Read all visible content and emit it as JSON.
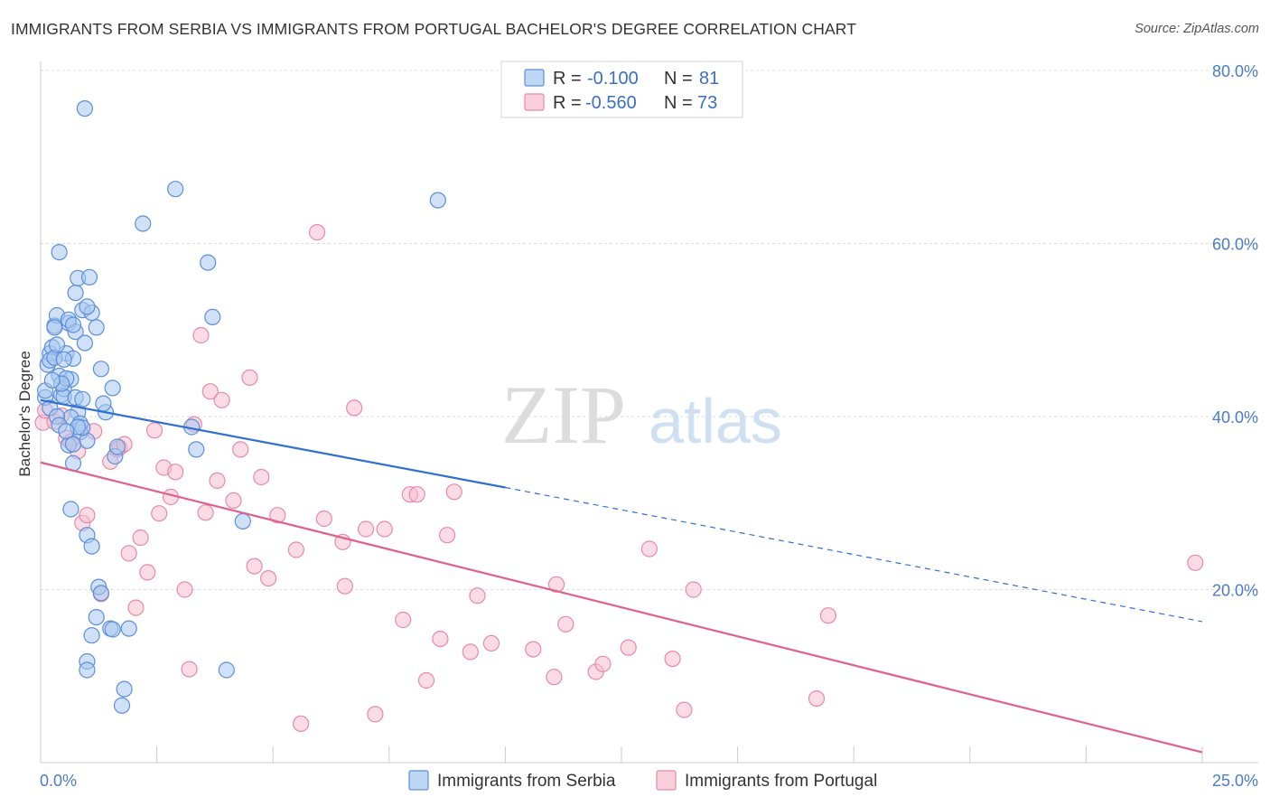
{
  "title": "IMMIGRANTS FROM SERBIA VS IMMIGRANTS FROM PORTUGAL BACHELOR'S DEGREE CORRELATION CHART",
  "source": "Source: ZipAtlas.com",
  "watermark": {
    "zip": "ZIP",
    "atlas": "atlas"
  },
  "legend": {
    "serbia": {
      "r_label": "R =",
      "r_value": "-0.100",
      "n_label": "N =",
      "n_value": "81"
    },
    "portugal": {
      "r_label": "R =",
      "r_value": "-0.560",
      "n_label": "N =",
      "n_value": "73"
    }
  },
  "bottom_legend": {
    "serbia": "Immigrants from Serbia",
    "portugal": "Immigrants from Portugal"
  },
  "colors": {
    "serbia_fill": "#a9c8f0",
    "serbia_stroke": "#5b8fd9",
    "serbia_line": "#2f6fd0",
    "portugal_fill": "#f7bfd0",
    "portugal_stroke": "#e68aa8",
    "portugal_line": "#e0608c",
    "axis_text": "#4a7cc7",
    "grid": "#dddddd"
  },
  "chart_data": {
    "type": "scatter",
    "title": "IMMIGRANTS FROM SERBIA VS IMMIGRANTS FROM PORTUGAL BACHELOR'S DEGREE CORRELATION CHART",
    "xlabel": "",
    "ylabel": "Bachelor's Degree",
    "xlim": [
      0,
      25
    ],
    "ylim": [
      0,
      80
    ],
    "x_tick_labels": [
      "0.0%",
      "25.0%"
    ],
    "y_ticks": [
      20,
      40,
      60,
      80
    ],
    "y_tick_labels": [
      "20.0%",
      "40.0%",
      "60.0%",
      "80.0%"
    ],
    "grid": true,
    "legend_placement": "top-center",
    "series": [
      {
        "name": "Immigrants from Serbia",
        "r": -0.1,
        "n": 81,
        "trend": {
          "x0": 0,
          "y0": 41.9,
          "x1": 10,
          "y1": 31.8,
          "dashed_to_x": 25,
          "dashed_to_y": 16.3
        },
        "points": [
          [
            0.1,
            42.2
          ],
          [
            0.15,
            46.0
          ],
          [
            0.2,
            47.3
          ],
          [
            0.25,
            48.0
          ],
          [
            0.3,
            50.5
          ],
          [
            0.35,
            51.7
          ],
          [
            0.4,
            44.7
          ],
          [
            0.45,
            42.5
          ],
          [
            0.5,
            43.2
          ],
          [
            0.55,
            47.3
          ],
          [
            0.6,
            50.8
          ],
          [
            0.65,
            44.3
          ],
          [
            0.7,
            46.7
          ],
          [
            0.75,
            49.8
          ],
          [
            0.8,
            40.5
          ],
          [
            0.85,
            38.2
          ],
          [
            0.9,
            52.3
          ],
          [
            0.95,
            48.5
          ],
          [
            1.0,
            37.2
          ],
          [
            1.1,
            52.0
          ],
          [
            1.2,
            50.3
          ],
          [
            1.3,
            45.5
          ],
          [
            1.4,
            40.5
          ],
          [
            1.55,
            43.3
          ],
          [
            0.2,
            46.5
          ],
          [
            0.3,
            46.8
          ],
          [
            0.35,
            48.3
          ],
          [
            0.5,
            46.6
          ],
          [
            0.6,
            51.2
          ],
          [
            0.65,
            39.9
          ],
          [
            0.7,
            50.6
          ],
          [
            0.75,
            54.3
          ],
          [
            0.8,
            56.0
          ],
          [
            0.85,
            39.2
          ],
          [
            0.9,
            38.7
          ],
          [
            0.95,
            75.6
          ],
          [
            1.0,
            52.7
          ],
          [
            1.05,
            56.1
          ],
          [
            0.4,
            59.0
          ],
          [
            0.3,
            50.3
          ],
          [
            0.5,
            42.3
          ],
          [
            0.55,
            44.4
          ],
          [
            0.45,
            43.8
          ],
          [
            0.6,
            36.7
          ],
          [
            0.7,
            34.6
          ],
          [
            0.65,
            29.3
          ],
          [
            0.75,
            42.2
          ],
          [
            0.8,
            38.8
          ],
          [
            1.0,
            26.3
          ],
          [
            1.1,
            25.0
          ],
          [
            1.25,
            20.3
          ],
          [
            1.3,
            19.6
          ],
          [
            1.2,
            16.8
          ],
          [
            1.1,
            14.7
          ],
          [
            1.0,
            11.7
          ],
          [
            1.0,
            10.7
          ],
          [
            1.5,
            15.5
          ],
          [
            1.55,
            15.4
          ],
          [
            1.6,
            35.4
          ],
          [
            1.65,
            36.5
          ],
          [
            1.75,
            6.6
          ],
          [
            1.8,
            8.5
          ],
          [
            1.9,
            15.5
          ],
          [
            2.2,
            62.3
          ],
          [
            2.9,
            66.3
          ],
          [
            3.35,
            36.2
          ],
          [
            3.25,
            38.8
          ],
          [
            3.6,
            57.8
          ],
          [
            3.7,
            51.5
          ],
          [
            4.0,
            10.7
          ],
          [
            4.35,
            27.9
          ],
          [
            8.55,
            65.0
          ],
          [
            0.1,
            43.0
          ],
          [
            0.2,
            41.0
          ],
          [
            0.25,
            44.2
          ],
          [
            0.35,
            40.0
          ],
          [
            0.4,
            39.0
          ],
          [
            0.55,
            38.3
          ],
          [
            0.7,
            36.8
          ],
          [
            0.9,
            42.0
          ],
          [
            1.35,
            41.5
          ]
        ]
      },
      {
        "name": "Immigrants from Portugal",
        "r": -0.56,
        "n": 73,
        "trend": {
          "x0": 0,
          "y0": 34.7,
          "x1": 25,
          "y1": 1.2
        },
        "points": [
          [
            0.05,
            39.3
          ],
          [
            0.1,
            40.7
          ],
          [
            0.3,
            39.4
          ],
          [
            0.45,
            40.1
          ],
          [
            0.55,
            37.5
          ],
          [
            0.65,
            37.1
          ],
          [
            0.8,
            36.0
          ],
          [
            0.9,
            27.7
          ],
          [
            1.0,
            28.6
          ],
          [
            1.15,
            38.3
          ],
          [
            1.3,
            19.5
          ],
          [
            1.5,
            34.8
          ],
          [
            1.65,
            36.2
          ],
          [
            1.7,
            36.4
          ],
          [
            1.8,
            36.8
          ],
          [
            1.9,
            24.2
          ],
          [
            2.05,
            17.9
          ],
          [
            2.15,
            26.0
          ],
          [
            2.3,
            22.0
          ],
          [
            2.45,
            38.4
          ],
          [
            2.55,
            28.8
          ],
          [
            2.65,
            34.1
          ],
          [
            2.8,
            30.7
          ],
          [
            2.9,
            33.6
          ],
          [
            3.1,
            20.0
          ],
          [
            3.2,
            10.8
          ],
          [
            3.3,
            39.1
          ],
          [
            3.45,
            49.4
          ],
          [
            3.55,
            28.9
          ],
          [
            3.65,
            42.9
          ],
          [
            3.8,
            32.6
          ],
          [
            3.9,
            41.9
          ],
          [
            4.15,
            30.3
          ],
          [
            4.3,
            36.2
          ],
          [
            4.5,
            44.5
          ],
          [
            4.6,
            22.7
          ],
          [
            4.75,
            33.0
          ],
          [
            4.9,
            21.3
          ],
          [
            5.1,
            28.6
          ],
          [
            5.5,
            24.6
          ],
          [
            5.6,
            4.5
          ],
          [
            5.95,
            61.3
          ],
          [
            6.1,
            28.2
          ],
          [
            6.5,
            25.5
          ],
          [
            6.55,
            20.4
          ],
          [
            6.75,
            41.0
          ],
          [
            7.0,
            27.0
          ],
          [
            7.2,
            5.6
          ],
          [
            7.4,
            27.0
          ],
          [
            7.8,
            16.5
          ],
          [
            7.95,
            31.0
          ],
          [
            8.1,
            31.0
          ],
          [
            8.3,
            9.5
          ],
          [
            8.6,
            14.3
          ],
          [
            8.75,
            26.3
          ],
          [
            8.9,
            31.3
          ],
          [
            9.25,
            12.8
          ],
          [
            9.4,
            19.3
          ],
          [
            9.7,
            13.8
          ],
          [
            10.6,
            13.1
          ],
          [
            11.05,
            9.9
          ],
          [
            11.1,
            20.6
          ],
          [
            11.3,
            16.0
          ],
          [
            11.95,
            10.5
          ],
          [
            12.1,
            11.4
          ],
          [
            12.65,
            13.3
          ],
          [
            13.1,
            24.7
          ],
          [
            13.6,
            12.0
          ],
          [
            13.85,
            6.1
          ],
          [
            14.05,
            20.0
          ],
          [
            16.7,
            7.4
          ],
          [
            16.95,
            17.0
          ],
          [
            24.85,
            23.1
          ]
        ]
      }
    ]
  }
}
